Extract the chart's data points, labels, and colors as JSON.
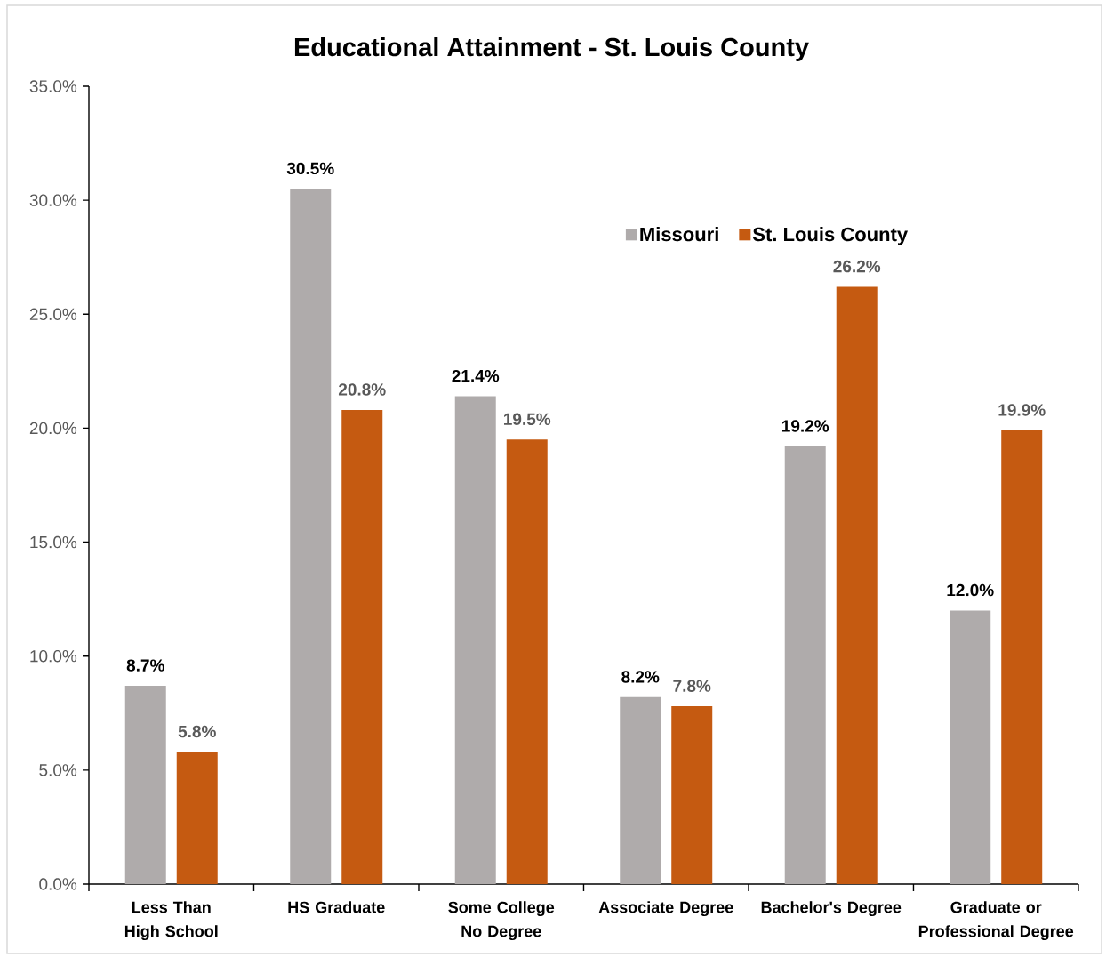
{
  "chart_data": {
    "type": "bar",
    "title": "Educational Attainment - St. Louis County",
    "categories": [
      "Less Than High School",
      "HS Graduate",
      "Some College No Degree",
      "Associate Degree",
      "Bachelor's Degree",
      "Graduate or Professional Degree"
    ],
    "series": [
      {
        "name": "Missouri",
        "color": "#afabab",
        "values": [
          8.7,
          30.5,
          21.4,
          8.2,
          19.2,
          12.0
        ],
        "value_labels": [
          "8.7%",
          "30.5%",
          "21.4%",
          "8.2%",
          "19.2%",
          "12.0%"
        ]
      },
      {
        "name": "St. Louis County",
        "color": "#c55a11",
        "values": [
          5.8,
          20.8,
          19.5,
          7.8,
          26.2,
          19.9
        ],
        "value_labels": [
          "5.8%",
          "20.8%",
          "19.5%",
          "7.8%",
          "26.2%",
          "19.9%"
        ]
      }
    ],
    "ylim": [
      0,
      35
    ],
    "yticks": [
      {
        "value": 0,
        "label": "0.0%"
      },
      {
        "value": 5,
        "label": "5.0%"
      },
      {
        "value": 10,
        "label": "10.0%"
      },
      {
        "value": 15,
        "label": "15.0%"
      },
      {
        "value": 20,
        "label": "20.0%"
      },
      {
        "value": 25,
        "label": "25.0%"
      },
      {
        "value": 30,
        "label": "30.0%"
      },
      {
        "value": 35,
        "label": "35.0%"
      }
    ],
    "legend": "top right"
  }
}
